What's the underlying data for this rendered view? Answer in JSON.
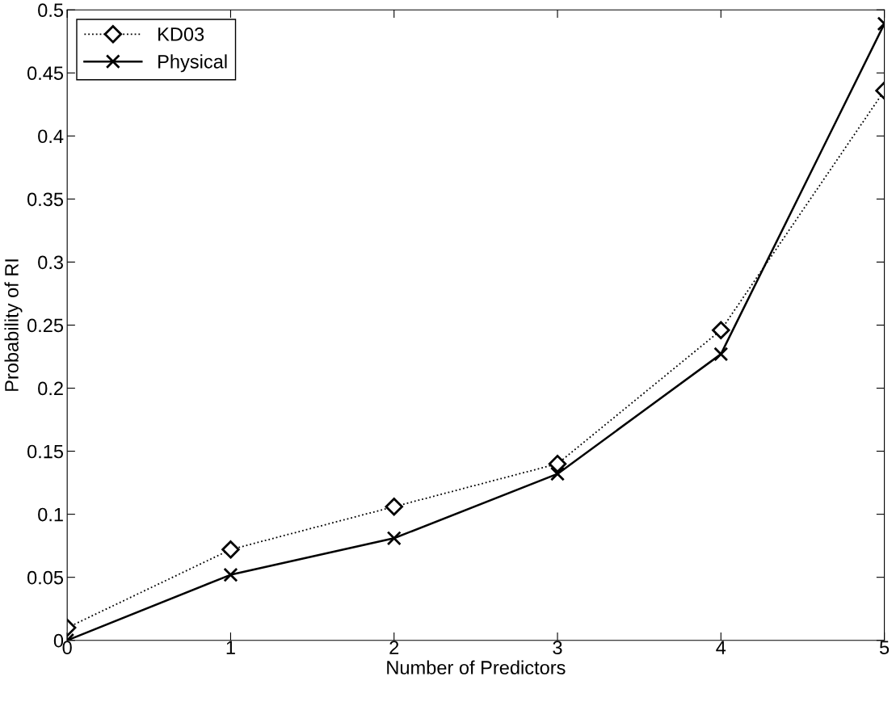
{
  "chart_data": {
    "type": "line",
    "xlabel": "Number of Predictors",
    "ylabel": "Probability of RI",
    "x": [
      0,
      1,
      2,
      3,
      4,
      5
    ],
    "series": [
      {
        "name": "KD03",
        "color": "#000000",
        "marker": "diamond",
        "line_style": "dotted",
        "values": [
          0.01,
          0.072,
          0.106,
          0.14,
          0.246,
          0.436
        ]
      },
      {
        "name": "Physical",
        "color": "#000000",
        "marker": "cross",
        "line_style": "solid",
        "values": [
          0.0,
          0.052,
          0.081,
          0.132,
          0.227,
          0.489
        ]
      }
    ],
    "xlim": [
      0,
      5
    ],
    "xticks": [
      0,
      1,
      2,
      3,
      4,
      5
    ],
    "ylim": [
      0,
      0.5
    ],
    "yticks": [
      0,
      0.05,
      0.1,
      0.15,
      0.2,
      0.25,
      0.3,
      0.35,
      0.4,
      0.45,
      0.5
    ],
    "grid": false,
    "legend": "top left"
  }
}
